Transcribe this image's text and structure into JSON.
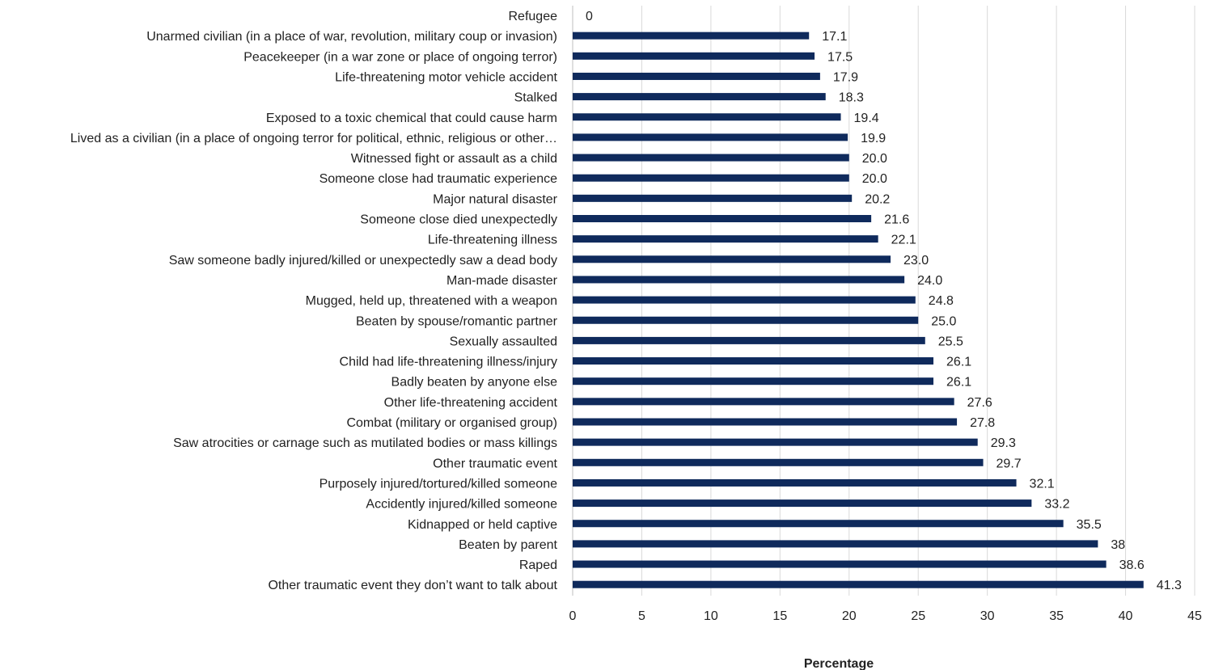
{
  "chart_data": {
    "type": "bar",
    "orientation": "horizontal",
    "categories": [
      "Refugee",
      "Unarmed civilian (in a place of war, revolution, military coup or invasion)",
      "Peacekeeper (in a war zone or place of ongoing terror)",
      "Life-threatening motor vehicle accident",
      "Stalked",
      "Exposed to a toxic chemical that could cause harm",
      "Lived as a civilian (in a place of ongoing terror for political, ethnic, religious or other…",
      "Witnessed fight or assault as a child",
      "Someone close had traumatic experience",
      "Major natural disaster",
      "Someone close died unexpectedly",
      "Life-threatening illness",
      "Saw someone badly injured/killed or unexpectedly saw a dead body",
      "Man-made disaster",
      "Mugged, held up, threatened with a weapon",
      "Beaten by spouse/romantic partner",
      "Sexually assaulted",
      "Child had life-threatening illness/injury",
      "Badly beaten by anyone else",
      "Other life-threatening accident",
      "Combat (military or organised group)",
      "Saw atrocities or carnage such as mutilated bodies or mass killings",
      "Other traumatic event",
      "Purposely injured/tortured/killed someone",
      "Accidently injured/killed someone",
      "Kidnapped or held captive",
      "Beaten by parent",
      "Raped",
      "Other traumatic event they don’t want to talk about"
    ],
    "values": [
      0,
      17.1,
      17.5,
      17.9,
      18.3,
      19.4,
      19.9,
      20.0,
      20.0,
      20.2,
      21.6,
      22.1,
      23.0,
      24.0,
      24.8,
      25.0,
      25.5,
      26.1,
      26.1,
      27.6,
      27.8,
      29.3,
      29.7,
      32.1,
      33.2,
      35.5,
      38,
      38.6,
      41.3
    ],
    "value_labels": [
      "0",
      "17.1",
      "17.5",
      "17.9",
      "18.3",
      "19.4",
      "19.9",
      "20.0",
      "20.0",
      "20.2",
      "21.6",
      "22.1",
      "23.0",
      "24.0",
      "24.8",
      "25.0",
      "25.5",
      "26.1",
      "26.1",
      "27.6",
      "27.8",
      "29.3",
      "29.7",
      "32.1",
      "33.2",
      "35.5",
      "38",
      "38.6",
      "41.3"
    ],
    "xlim": [
      0,
      45
    ],
    "xticks": [
      "0",
      "5",
      "10",
      "15",
      "20",
      "25",
      "30",
      "35",
      "40",
      "45"
    ],
    "xlabel": "Percentage",
    "ylabel": "",
    "grid": "vertical",
    "legend": "none",
    "bar_color": "#0f2a5c",
    "grid_color": "#d9d9d9"
  }
}
